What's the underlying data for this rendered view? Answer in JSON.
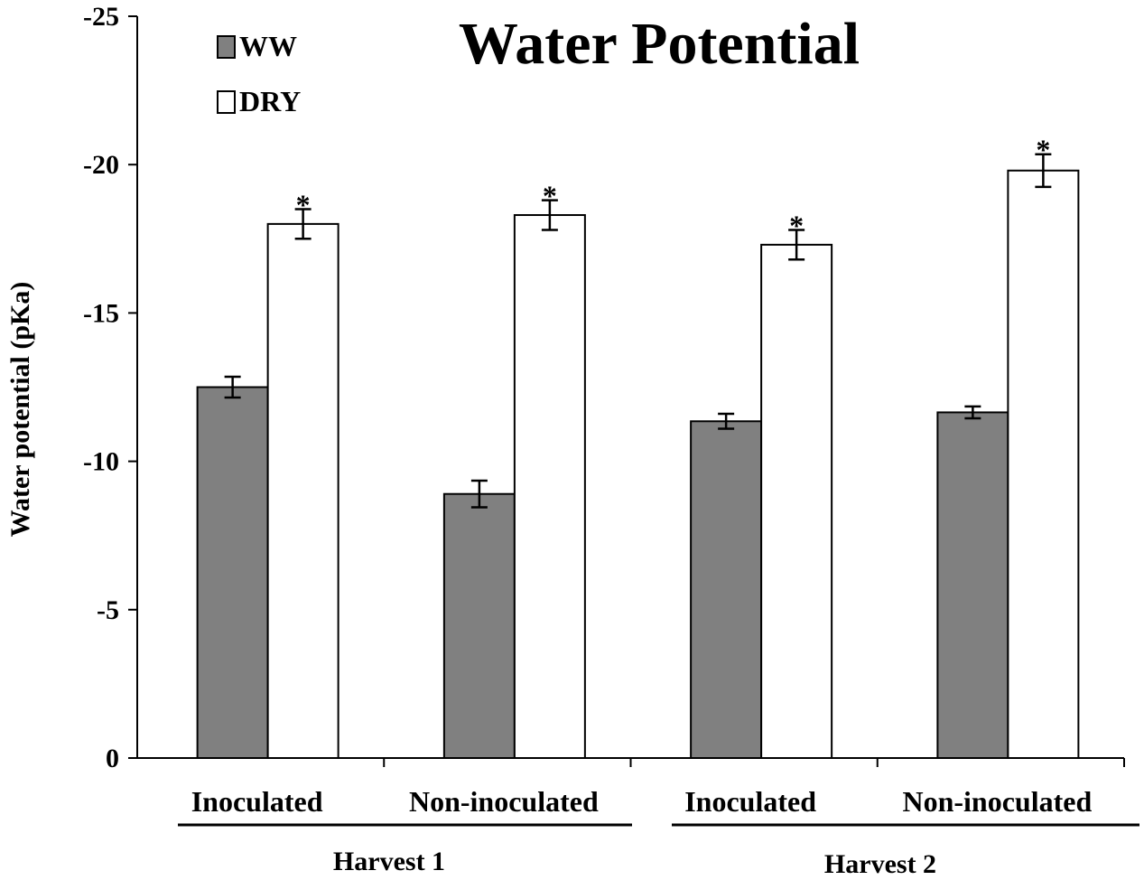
{
  "chart_data": {
    "type": "bar",
    "title": "Water Potential",
    "ylabel": "Water potential (pKa)",
    "xlabel": "",
    "ylim": [
      0,
      -25
    ],
    "yticks": [
      0,
      -5,
      -10,
      -15,
      -20,
      -25
    ],
    "ytick_labels": [
      "0",
      "-5",
      "-10",
      "-15",
      "-20",
      "-25"
    ],
    "categories": [
      "Inoculated",
      "Non-inoculated",
      "Inoculated",
      "Non-inoculated"
    ],
    "groups": [
      {
        "label": "Harvest 1",
        "categories": [
          0,
          1
        ]
      },
      {
        "label": "Harvest 2",
        "categories": [
          2,
          3
        ]
      }
    ],
    "series": [
      {
        "name": "WW",
        "color": "#808080",
        "values": [
          -12.5,
          -8.9,
          -11.35,
          -11.65
        ],
        "errors": [
          0.35,
          0.45,
          0.25,
          0.2
        ]
      },
      {
        "name": "DRY",
        "color": "#ffffff",
        "values": [
          -18.0,
          -18.3,
          -17.3,
          -19.8
        ],
        "errors": [
          0.5,
          0.5,
          0.5,
          0.55
        ]
      }
    ],
    "significance": {
      "marker": "*",
      "series": "DRY",
      "categories": [
        0,
        1,
        2,
        3
      ]
    },
    "legend": "top-left",
    "grid": false
  }
}
